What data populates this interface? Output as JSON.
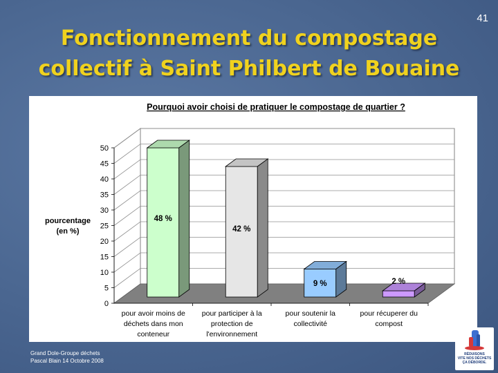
{
  "slide": {
    "number": "41",
    "title_line1": "Fonctionnement du compostage",
    "title_line2": "collectif à Saint Philbert de Bouaine",
    "footer_line1": "Grand Dole-Groupe déchets",
    "footer_line2": "Pascal Blain 14 Octobre 2008",
    "logo_line1": "RÉDUISONS",
    "logo_line2": "VITE NOS DÉCHETS",
    "logo_line3": "ÇA DÉBORDE."
  },
  "chart_data": {
    "type": "bar",
    "title": "Pourquoi avoir choisi de pratiquer le compostage de quartier ?",
    "ylabel_line1": "pourcentage",
    "ylabel_line2": "(en %)",
    "ylim": [
      0,
      50
    ],
    "yticks": [
      0,
      5,
      10,
      15,
      20,
      25,
      30,
      35,
      40,
      45,
      50
    ],
    "grid": true,
    "categories": [
      [
        "pour avoir moins de",
        "déchets dans mon",
        "conteneur"
      ],
      [
        "pour participer à la",
        "protection de",
        "l'environnement"
      ],
      [
        "pour soutenir la",
        "collectivité"
      ],
      [
        "pour récuperer du",
        "compost"
      ]
    ],
    "values": [
      48,
      42,
      9,
      2
    ],
    "labels": [
      "48 %",
      "42 %",
      "9 %",
      "2 %"
    ],
    "colors": [
      "#ccffcc",
      "#e6e6e6",
      "#99ccff",
      "#cc99ff"
    ],
    "label_position": [
      "inside",
      "inside",
      "inside",
      "above"
    ]
  }
}
